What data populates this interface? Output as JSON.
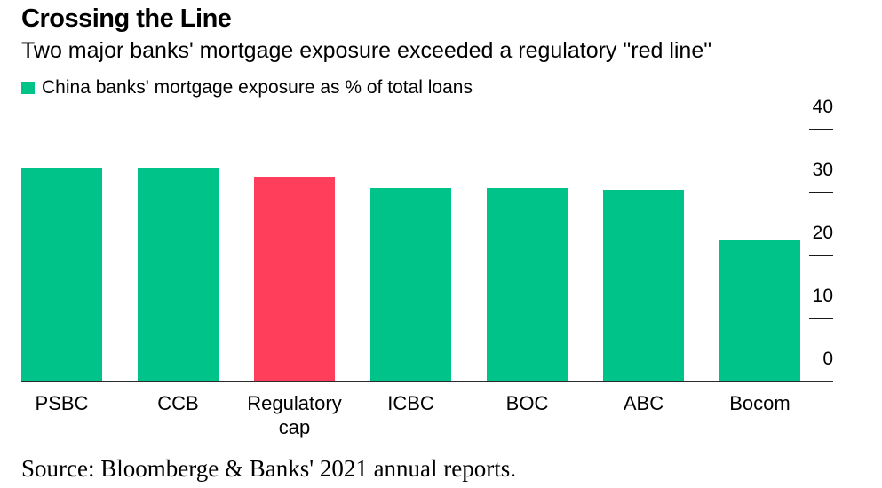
{
  "header": {
    "title": "Crossing the Line",
    "subtitle": "Two major banks' mortgage exposure exceeded a regulatory \"red line\""
  },
  "legend": {
    "swatch_color": "#00C38A",
    "label": "China banks' mortgage exposure as % of total loans"
  },
  "chart_data": {
    "type": "bar",
    "title": "Crossing the Line",
    "subtitle": "Two major banks' mortgage exposure exceeded a regulatory \"red line\"",
    "legend": [
      "China banks' mortgage exposure as % of total loans"
    ],
    "legend_position": "top-left",
    "categories": [
      "PSBC",
      "CCB",
      "Regulatory cap",
      "ICBC",
      "BOC",
      "ABC",
      "Bocom"
    ],
    "values": [
      33.9,
      33.9,
      32.5,
      30.7,
      30.7,
      30.4,
      22.6
    ],
    "bar_colors": [
      "#00C38A",
      "#00C38A",
      "#FF3E5C",
      "#00C38A",
      "#00C38A",
      "#00C38A",
      "#00C38A"
    ],
    "highlight_category": "Regulatory cap",
    "xlabel": "",
    "ylabel": "",
    "ylim": [
      0,
      40
    ],
    "yticks": [
      0,
      10,
      20,
      30,
      40
    ],
    "y_axis_side": "right",
    "grid": false
  },
  "colors": {
    "bar_green": "#00C38A",
    "bar_red": "#FF3E5C",
    "axis_line": "#2b2b2b",
    "text": "#000000"
  },
  "source": "Source: Bloomberge & Banks' 2021 annual reports."
}
